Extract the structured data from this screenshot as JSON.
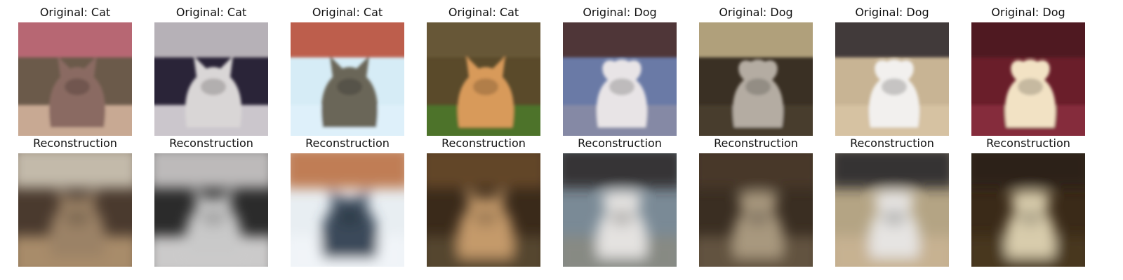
{
  "panels": [
    {
      "original_title": "Original: Cat",
      "reconstruction_title": "Reconstruction",
      "original_image": "photo-of-cat",
      "reconstruction_image": "blurry-reconstruction-of-cat",
      "colors": {
        "bg": "#6b5a4a",
        "subject": "#8a6a62",
        "top": "#c46a7a",
        "bottom": "#d8b6a0"
      },
      "recon_colors": {
        "bg": "#4a3a2e",
        "subject": "#9b8266",
        "top": "#d8d0c0",
        "bottom": "#b89a74"
      }
    },
    {
      "original_title": "Original: Cat",
      "reconstruction_title": "Reconstruction",
      "original_image": "photo-of-cat",
      "reconstruction_image": "blurry-reconstruction-of-cat",
      "colors": {
        "bg": "#2a2438",
        "subject": "#d9d6d6",
        "top": "#cfc9cc",
        "bottom": "#e7e3e6"
      },
      "recon_colors": {
        "bg": "#2b2b2b",
        "subject": "#c9c9c9",
        "top": "#d6d4d4",
        "bottom": "#e8e6e6"
      }
    },
    {
      "original_title": "Original: Cat",
      "reconstruction_title": "Reconstruction",
      "original_image": "photo-of-cat",
      "reconstruction_image": "blurry-reconstruction-of-cat",
      "colors": {
        "bg": "#d6ecf6",
        "subject": "#6a6658",
        "top": "#b84630",
        "bottom": "#dff1fa"
      },
      "recon_colors": {
        "bg": "#e8eef2",
        "subject": "#3a4a5a",
        "top": "#b86a3a",
        "bottom": "#f2f6f9"
      }
    },
    {
      "original_title": "Original: Cat",
      "reconstruction_title": "Reconstruction",
      "original_image": "photo-of-cat",
      "reconstruction_image": "blurry-reconstruction-of-cat",
      "colors": {
        "bg": "#5a4a2a",
        "subject": "#d89a5a",
        "top": "#6a5a3a",
        "bottom": "#4a7a2a"
      },
      "recon_colors": {
        "bg": "#3a2a1a",
        "subject": "#c49a6a",
        "top": "#6a4a2a",
        "bottom": "#5a4a34"
      }
    },
    {
      "original_title": "Original: Dog",
      "reconstruction_title": "Reconstruction",
      "original_image": "photo-of-dog",
      "reconstruction_image": "blurry-reconstruction-of-dog",
      "colors": {
        "bg": "#6a7aa6",
        "subject": "#e8e4e6",
        "top": "#4a2a26",
        "bottom": "#8a8ca6"
      },
      "recon_colors": {
        "bg": "#7a8a96",
        "subject": "#e4e2e0",
        "top": "#2a2624",
        "bottom": "#8a8a80"
      }
    },
    {
      "original_title": "Original: Dog",
      "reconstruction_title": "Reconstruction",
      "original_image": "photo-of-dog",
      "reconstruction_image": "blurry-reconstruction-of-dog",
      "colors": {
        "bg": "#3a3024",
        "subject": "#b4aca2",
        "top": "#c4b48a",
        "bottom": "#4a3e2e"
      },
      "recon_colors": {
        "bg": "#3a2e22",
        "subject": "#a8987e",
        "top": "#4a3a28",
        "bottom": "#6a5a44"
      }
    },
    {
      "original_title": "Original: Dog",
      "reconstruction_title": "Reconstruction",
      "original_image": "photo-of-dog",
      "reconstruction_image": "blurry-reconstruction-of-dog",
      "colors": {
        "bg": "#c8b494",
        "subject": "#f2f0ee",
        "top": "#2a2428",
        "bottom": "#d8c4a4"
      },
      "recon_colors": {
        "bg": "#b4a484",
        "subject": "#e6e4e2",
        "top": "#1e1e24",
        "bottom": "#cab494"
      }
    },
    {
      "original_title": "Original: Dog",
      "reconstruction_title": "Reconstruction",
      "original_image": "photo-of-dog",
      "reconstruction_image": "blurry-reconstruction-of-dog",
      "colors": {
        "bg": "#6a1e2a",
        "subject": "#f2e2c4",
        "top": "#4a1420",
        "bottom": "#8a3040"
      },
      "recon_colors": {
        "bg": "#3a2a18",
        "subject": "#d8ccac",
        "top": "#2a2014",
        "bottom": "#4a3820"
      }
    }
  ]
}
